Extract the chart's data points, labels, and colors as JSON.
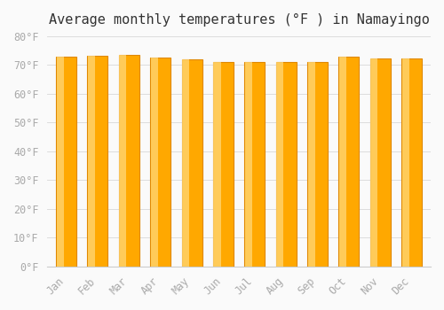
{
  "title": "Average monthly temperatures (°F ) in Namayingo",
  "months": [
    "Jan",
    "Feb",
    "Mar",
    "Apr",
    "May",
    "Jun",
    "Jul",
    "Aug",
    "Sep",
    "Oct",
    "Nov",
    "Dec"
  ],
  "values": [
    73.0,
    73.2,
    73.6,
    72.7,
    72.0,
    71.1,
    70.9,
    71.2,
    71.2,
    73.0,
    72.3,
    72.3
  ],
  "bar_color_main": "#FFA800",
  "bar_color_light": "#FFD878",
  "bar_edge_color": "#E08800",
  "ylim": [
    0,
    80
  ],
  "yticks": [
    0,
    10,
    20,
    30,
    40,
    50,
    60,
    70,
    80
  ],
  "ytick_labels": [
    "0°F",
    "10°F",
    "20°F",
    "30°F",
    "40°F",
    "50°F",
    "60°F",
    "70°F",
    "80°F"
  ],
  "background_color": "#FAFAFA",
  "grid_color": "#DDDDDD",
  "title_fontsize": 11,
  "tick_fontsize": 8.5,
  "tick_color": "#AAAAAA",
  "font_family": "monospace"
}
